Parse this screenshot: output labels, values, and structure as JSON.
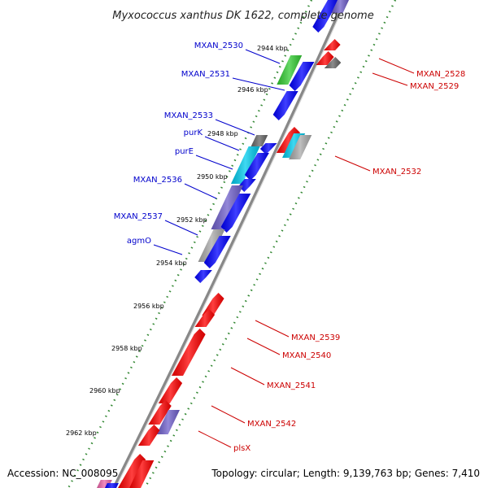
{
  "title": "Myxococcus xanthus DK 1622, complete genome",
  "accession": "Accession: NC_008095",
  "topology": "Topology: circular; Length: 9,139,763 bp; Genes: 7,410",
  "colors": {
    "forward": "#ff0000",
    "reverse": "#0000ff",
    "rna": "#33cc33",
    "other": "#666666",
    "cyan": "#00ccee",
    "purple": "#7060cc",
    "silver": "#aaaaaa",
    "pink": "#ee66aa",
    "tick": "#338833",
    "backbone": "#888888"
  },
  "ticks": [
    {
      "label": "2944 kbp"
    },
    {
      "label": "2946 kbp"
    },
    {
      "label": "2948 kbp"
    },
    {
      "label": "2950 kbp"
    },
    {
      "label": "2952 kbp"
    },
    {
      "label": "2954 kbp"
    },
    {
      "label": "2956 kbp"
    },
    {
      "label": "2958 kbp"
    },
    {
      "label": "2960 kbp"
    },
    {
      "label": "2962 kbp"
    }
  ],
  "labels_left": [
    {
      "text": "MXAN_2530"
    },
    {
      "text": "MXAN_2531"
    },
    {
      "text": "MXAN_2533"
    },
    {
      "text": "purK"
    },
    {
      "text": "purE"
    },
    {
      "text": "MXAN_2536"
    },
    {
      "text": "MXAN_2537"
    },
    {
      "text": "agmO"
    }
  ],
  "labels_right": [
    {
      "text": "MXAN_2528"
    },
    {
      "text": "MXAN_2529"
    },
    {
      "text": "MXAN_2532"
    },
    {
      "text": "MXAN_2539"
    },
    {
      "text": "MXAN_2540"
    },
    {
      "text": "MXAN_2541"
    },
    {
      "text": "MXAN_2542"
    },
    {
      "text": "plsX"
    }
  ]
}
